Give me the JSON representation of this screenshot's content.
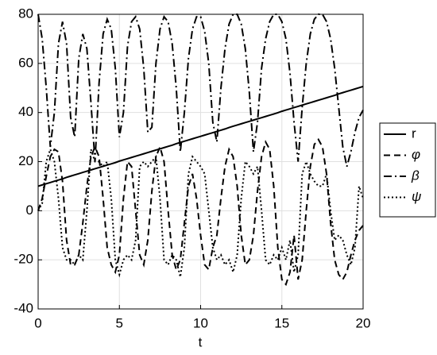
{
  "chart_data": {
    "type": "line",
    "xlabel": "t",
    "x": [
      0,
      0.25,
      0.5,
      0.75,
      1,
      1.25,
      1.5,
      1.75,
      2,
      2.25,
      2.5,
      2.75,
      3,
      3.25,
      3.5,
      3.75,
      4,
      4.25,
      4.5,
      4.75,
      5,
      5.25,
      5.5,
      5.75,
      6,
      6.25,
      6.5,
      6.75,
      7,
      7.25,
      7.5,
      7.75,
      8,
      8.25,
      8.5,
      8.75,
      9,
      9.25,
      9.5,
      9.75,
      10,
      10.25,
      10.5,
      10.75,
      11,
      11.25,
      11.5,
      11.75,
      12,
      12.25,
      12.5,
      12.75,
      13,
      13.25,
      13.5,
      13.75,
      14,
      14.25,
      14.5,
      14.75,
      15,
      15.25,
      15.5,
      15.75,
      16,
      16.25,
      16.5,
      16.75,
      17,
      17.25,
      17.5,
      17.75,
      18,
      18.25,
      18.5,
      18.75,
      19,
      19.25,
      19.5,
      19.75,
      20
    ],
    "series": [
      {
        "name": "r",
        "color": "#000000",
        "dash": "none",
        "italic": false,
        "values": [
          10.0,
          10.5,
          11.0,
          11.5,
          12.0,
          12.5,
          13.0,
          13.6,
          14.1,
          14.6,
          15.1,
          15.6,
          16.1,
          16.6,
          17.1,
          17.6,
          18.1,
          18.6,
          19.1,
          19.6,
          20.2,
          20.7,
          21.2,
          21.7,
          22.2,
          22.7,
          23.2,
          23.7,
          24.2,
          24.7,
          25.2,
          25.7,
          26.2,
          26.7,
          27.3,
          27.8,
          28.3,
          28.8,
          29.3,
          29.8,
          30.3,
          30.8,
          31.3,
          31.8,
          32.3,
          32.8,
          33.3,
          33.9,
          34.4,
          34.9,
          35.4,
          35.9,
          36.4,
          36.9,
          37.4,
          37.9,
          38.4,
          38.9,
          39.4,
          39.9,
          40.5,
          41.0,
          41.5,
          42.0,
          42.5,
          43.0,
          43.5,
          44.0,
          44.5,
          45.0,
          45.5,
          46.0,
          46.5,
          47.0,
          47.6,
          48.1,
          48.6,
          49.1,
          49.6,
          50.1,
          50.6
        ]
      },
      {
        "name": "φ",
        "color": "#000000",
        "dash": "8,5",
        "italic": true,
        "values": [
          0,
          5,
          14,
          22,
          25,
          24,
          12,
          -12,
          -22,
          -22,
          -18,
          -5,
          10,
          22,
          26,
          22,
          5,
          -15,
          -22,
          -25,
          -18,
          5,
          20,
          18,
          0,
          -18,
          -22,
          -12,
          8,
          22,
          26,
          20,
          0,
          -18,
          -24,
          -20,
          -5,
          10,
          15,
          5,
          -10,
          -22,
          -24,
          -15,
          -10,
          5,
          18,
          25,
          22,
          10,
          -10,
          -22,
          -20,
          -10,
          8,
          22,
          28,
          25,
          10,
          -15,
          -28,
          -30,
          -25,
          -10,
          -28,
          -20,
          0,
          18,
          27,
          29,
          26,
          15,
          -5,
          -20,
          -26,
          -28,
          -25,
          -18,
          -12,
          -8,
          -6
        ]
      },
      {
        "name": "β",
        "color": "#000000",
        "dash": "10,4,2,4",
        "italic": true,
        "values": [
          80,
          70,
          50,
          26,
          40,
          68,
          77,
          68,
          38,
          30,
          62,
          72,
          66,
          44,
          20,
          52,
          72,
          78,
          74,
          58,
          30,
          40,
          67,
          77,
          79,
          74,
          58,
          32,
          34,
          60,
          74,
          79,
          77,
          68,
          50,
          24,
          40,
          62,
          74,
          79,
          79,
          73,
          60,
          36,
          28,
          50,
          66,
          76,
          80,
          80,
          76,
          66,
          48,
          24,
          36,
          58,
          70,
          77,
          80,
          80,
          77,
          70,
          56,
          36,
          20,
          42,
          60,
          72,
          78,
          80,
          80,
          77,
          70,
          58,
          42,
          26,
          18,
          24,
          32,
          38,
          41
        ]
      },
      {
        "name": "ψ",
        "color": "#000000",
        "dash": "2,3",
        "italic": true,
        "values": [
          0,
          3,
          20,
          25,
          20,
          5,
          -15,
          -20,
          -20,
          -22,
          -18,
          -20,
          0,
          25,
          20,
          20,
          18,
          20,
          5,
          -20,
          -26,
          -20,
          -18,
          -20,
          -12,
          18,
          20,
          18,
          20,
          22,
          5,
          -20,
          -22,
          -18,
          -20,
          -27,
          -15,
          15,
          22,
          20,
          18,
          15,
          0,
          -15,
          -20,
          -18,
          -22,
          -20,
          -25,
          -18,
          5,
          20,
          18,
          15,
          18,
          0,
          -20,
          -22,
          -18,
          -20,
          -15,
          -20,
          -12,
          -25,
          -18,
          15,
          20,
          15,
          12,
          10,
          10,
          15,
          0,
          -12,
          -10,
          -12,
          -18,
          -22,
          -15,
          10,
          5
        ]
      }
    ],
    "xlim": [
      0,
      20
    ],
    "xticks": [
      0,
      5,
      10,
      15,
      20
    ],
    "ylim": [
      -40,
      80
    ],
    "yticks": [
      -40,
      -20,
      0,
      20,
      40,
      60,
      80
    ],
    "grid": true,
    "legend": "right"
  }
}
